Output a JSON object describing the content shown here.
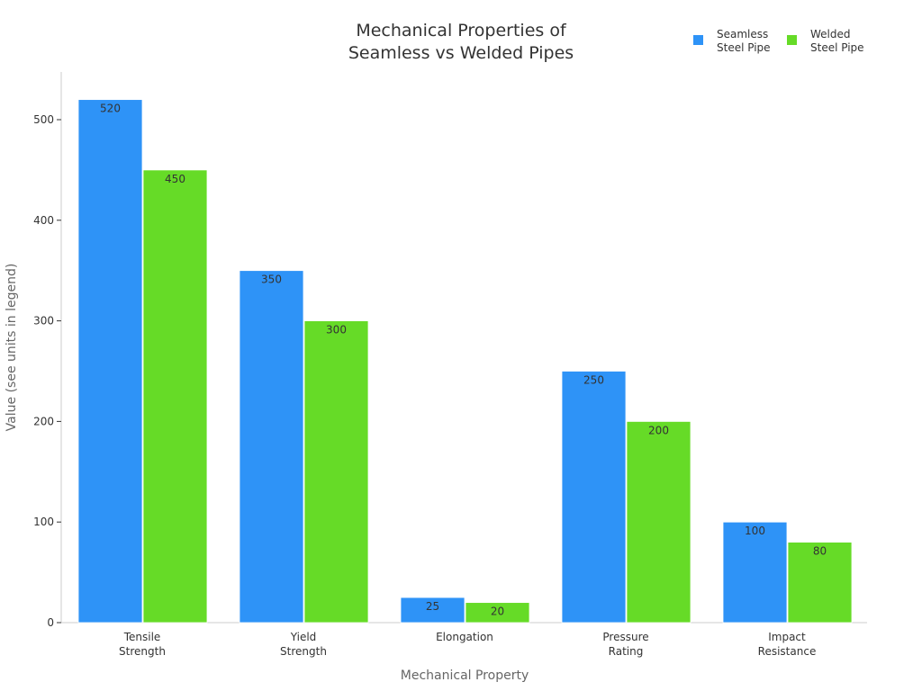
{
  "chart_data": {
    "type": "bar",
    "title": [
      "Mechanical Properties of",
      "Seamless vs Welded Pipes"
    ],
    "xlabel": "Mechanical Property",
    "ylabel": "Value (see units in legend)",
    "categories": [
      [
        "Tensile",
        "Strength"
      ],
      [
        "Yield",
        "Strength"
      ],
      [
        "Elongation"
      ],
      [
        "Pressure",
        "Rating"
      ],
      [
        "Impact",
        "Resistance"
      ]
    ],
    "series": [
      {
        "name": [
          "Seamless",
          "Steel Pipe"
        ],
        "color": "#2e93f7",
        "values": [
          520,
          350,
          25,
          250,
          100
        ]
      },
      {
        "name": [
          "Welded",
          "Steel Pipe"
        ],
        "color": "#66db27",
        "values": [
          450,
          300,
          20,
          200,
          80
        ]
      }
    ],
    "ylim": [
      0,
      545
    ],
    "yticks": [
      0,
      100,
      200,
      300,
      400,
      500
    ],
    "grid": false,
    "legend": "top-right"
  }
}
